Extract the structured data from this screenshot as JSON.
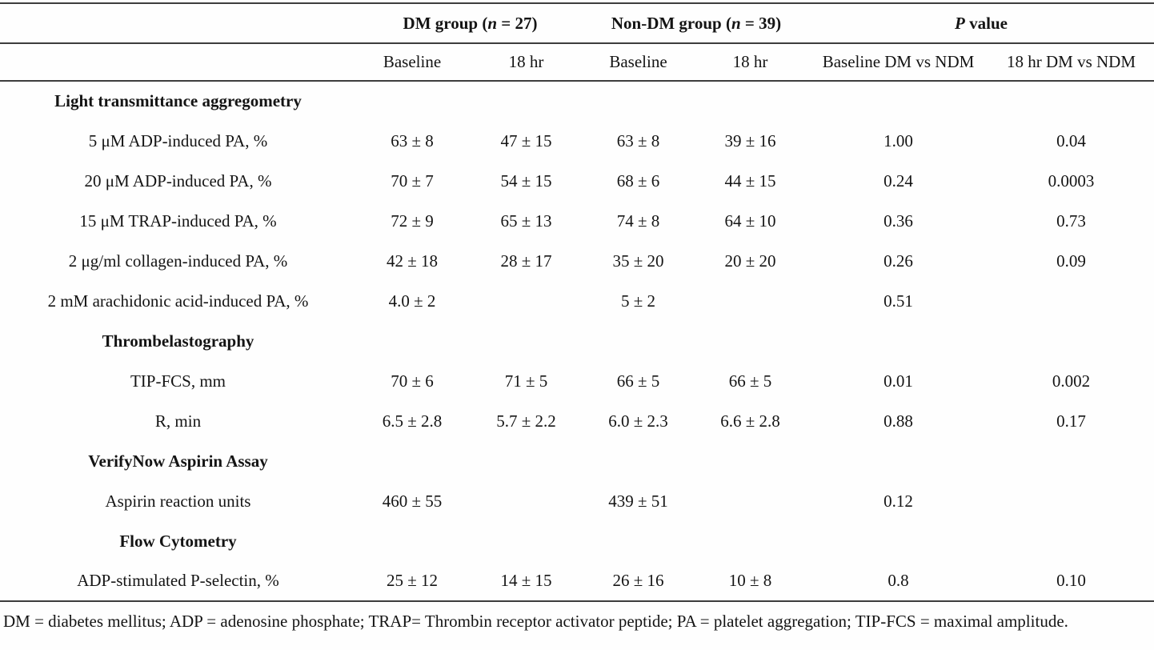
{
  "table": {
    "group_headers": {
      "dm": {
        "prefix": "DM group (",
        "n": "n",
        "suffix": " = 27)"
      },
      "ndm": {
        "prefix": "Non-DM group (",
        "n": "n",
        "suffix": " = 39)"
      },
      "p": {
        "p": "P",
        "rest": " value"
      }
    },
    "sub_headers": [
      "Baseline",
      "18 hr",
      "Baseline",
      "18 hr",
      "Baseline DM vs NDM",
      "18 hr DM vs NDM"
    ],
    "rows": [
      {
        "type": "section",
        "label": "Light transmittance aggregometry"
      },
      {
        "type": "data",
        "label": "5 μM ADP-induced PA, %",
        "values": [
          "63 ± 8",
          "47 ± 15",
          "63 ± 8",
          "39 ± 16",
          "1.00",
          "0.04"
        ]
      },
      {
        "type": "data",
        "label": "20 μM ADP-induced PA, %",
        "values": [
          "70 ± 7",
          "54 ± 15",
          "68 ± 6",
          "44 ± 15",
          "0.24",
          "0.0003"
        ]
      },
      {
        "type": "data",
        "label": "15 μM TRAP-induced PA, %",
        "values": [
          "72 ± 9",
          "65 ± 13",
          "74 ± 8",
          "64 ± 10",
          "0.36",
          "0.73"
        ]
      },
      {
        "type": "data",
        "label": "2 μg/ml collagen-induced PA, %",
        "values": [
          "42 ± 18",
          "28 ± 17",
          "35 ± 20",
          "20 ± 20",
          "0.26",
          "0.09"
        ]
      },
      {
        "type": "data",
        "label": "2 mM arachidonic acid-induced PA, %",
        "values": [
          "4.0 ± 2",
          "",
          "5 ± 2",
          "",
          "0.51",
          ""
        ]
      },
      {
        "type": "section",
        "label": "Thrombelastography"
      },
      {
        "type": "data",
        "label": "TIP-FCS, mm",
        "values": [
          "70 ± 6",
          "71 ± 5",
          "66 ± 5",
          "66 ± 5",
          "0.01",
          "0.002"
        ]
      },
      {
        "type": "data",
        "label": "R, min",
        "values": [
          "6.5 ± 2.8",
          "5.7 ± 2.2",
          "6.0 ± 2.3",
          "6.6 ± 2.8",
          "0.88",
          "0.17"
        ]
      },
      {
        "type": "section",
        "label": "VerifyNow Aspirin Assay"
      },
      {
        "type": "data",
        "label": "Aspirin reaction units",
        "values": [
          "460 ± 55",
          "",
          "439 ± 51",
          "",
          "0.12",
          ""
        ]
      },
      {
        "type": "section",
        "label": "Flow Cytometry"
      },
      {
        "type": "data",
        "label": "ADP-stimulated P-selectin, %",
        "values": [
          "25 ± 12",
          "14 ± 15",
          "26 ± 16",
          "10 ± 8",
          "0.8",
          "0.10"
        ]
      }
    ],
    "footnote": "DM = diabetes mellitus; ADP = adenosine phosphate; TRAP= Thrombin receptor activator peptide; PA = platelet aggregation; TIP-FCS = maximal amplitude."
  }
}
